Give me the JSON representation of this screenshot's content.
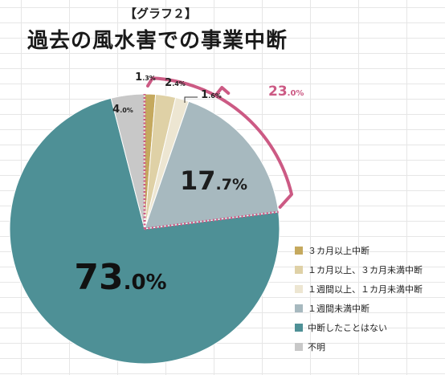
{
  "supertitle": "【グラフ２】",
  "title": "過去の風水害での事業中断",
  "chart_data": {
    "type": "pie",
    "start_angle_deg": 0,
    "direction": "clockwise",
    "slices": [
      {
        "label": "３カ月以上中断",
        "value": 1.3,
        "display": "1.3%",
        "color": "#c5a95e"
      },
      {
        "label": "１カ月以上、３カ月未満中断",
        "value": 2.4,
        "display": "2.4%",
        "color": "#dfd1a6"
      },
      {
        "label": "１週間以上、１カ月未満中断",
        "value": 1.6,
        "display": "1.6%",
        "color": "#ede6d2"
      },
      {
        "label": "１週間未満中断",
        "value": 17.7,
        "display": "17.7%",
        "color": "#a7b9bf"
      },
      {
        "label": "中断したことはない",
        "value": 73.0,
        "display": "73.0%",
        "color": "#4e9096"
      },
      {
        "label": "不明",
        "value": 4.0,
        "display": "4.0%",
        "color": "#c8c8c8"
      }
    ],
    "bracket": {
      "total": 23.0,
      "display": "23.0%",
      "color": "#cc5a84"
    },
    "legend_position": "bottom-right"
  }
}
